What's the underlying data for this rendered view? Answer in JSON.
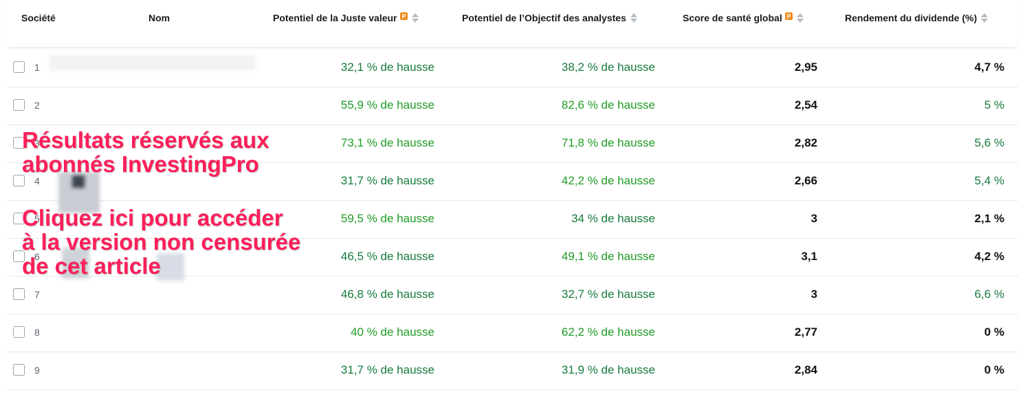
{
  "columns": {
    "company": "Société",
    "name": "Nom",
    "fair_value": "Potentiel de la Juste valeur",
    "analyst_target": "Potentiel de l’Objectif des analystes",
    "health": "Score de santé global",
    "dividend": "Rendement du dividende (%)"
  },
  "colors": {
    "green": "#1f9b24",
    "dark_green": "#157a3c",
    "overlay": "#ff1f5a",
    "pro_badge": "#f28b1d"
  },
  "icons": {
    "pro": "investingpro-badge-icon",
    "sort": "sort-arrows-icon",
    "checkbox": "checkbox-icon"
  },
  "rows": [
    {
      "index": "1",
      "fair_value": "32,1 % de hausse",
      "analyst_target": "38,2 % de hausse",
      "health": "2,95",
      "dividend": "4,7 %"
    },
    {
      "index": "2",
      "fair_value": "55,9 % de hausse",
      "analyst_target": "82,6 % de hausse",
      "health": "2,54",
      "dividend": "5 %"
    },
    {
      "index": "3",
      "fair_value": "73,1 % de hausse",
      "analyst_target": "71,8 % de hausse",
      "health": "2,82",
      "dividend": "5,6 %"
    },
    {
      "index": "4",
      "fair_value": "31,7 % de hausse",
      "analyst_target": "42,2 % de hausse",
      "health": "2,66",
      "dividend": "5,4 %"
    },
    {
      "index": "5",
      "fair_value": "59,5 % de hausse",
      "analyst_target": "34 % de hausse",
      "health": "3",
      "dividend": "2,1 %"
    },
    {
      "index": "6",
      "fair_value": "46,5 % de hausse",
      "analyst_target": "49,1 % de hausse",
      "health": "3,1",
      "dividend": "4,2 %"
    },
    {
      "index": "7",
      "fair_value": "46,8 % de hausse",
      "analyst_target": "32,7 % de hausse",
      "health": "3",
      "dividend": "6,6 %"
    },
    {
      "index": "8",
      "fair_value": "40 % de hausse",
      "analyst_target": "62,2 % de hausse",
      "health": "2,77",
      "dividend": "0 %"
    },
    {
      "index": "9",
      "fair_value": "31,7 % de hausse",
      "analyst_target": "31,9 % de hausse",
      "health": "2,84",
      "dividend": "0 %"
    }
  ],
  "overlay": {
    "line1": "Résultats réservés aux",
    "line2": "abonnés InvestingPro",
    "line3": "Cliquez ici pour accéder",
    "line4": "à la version non censurée",
    "line5": "de cet article"
  }
}
